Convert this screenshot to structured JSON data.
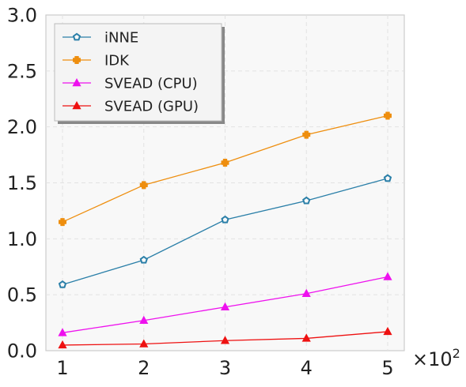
{
  "chart_data": {
    "type": "line",
    "x": [
      1,
      2,
      3,
      4,
      5
    ],
    "x_multiplier_label": "×10",
    "x_multiplier_exp": "2",
    "xticks": [
      "1",
      "2",
      "3",
      "4",
      "5"
    ],
    "yticks": [
      "0.0",
      "0.5",
      "1.0",
      "1.5",
      "2.0",
      "2.5",
      "3.0"
    ],
    "ylim": [
      0,
      3.0
    ],
    "grid": true,
    "legend_position": "top-left",
    "series": [
      {
        "name": "iNNE",
        "values": [
          0.59,
          0.81,
          1.17,
          1.34,
          1.54
        ],
        "color": "#2a7fa8",
        "marker": "pentagon"
      },
      {
        "name": "IDK",
        "values": [
          1.15,
          1.48,
          1.68,
          1.93,
          2.1
        ],
        "color": "#ee8e0e",
        "marker": "plus-filled"
      },
      {
        "name": "SVEAD (CPU)",
        "values": [
          0.16,
          0.27,
          0.39,
          0.51,
          0.66
        ],
        "color": "#ee11ee",
        "marker": "triangle"
      },
      {
        "name": "SVEAD (GPU)",
        "values": [
          0.05,
          0.06,
          0.09,
          0.11,
          0.17
        ],
        "color": "#ee1111",
        "marker": "triangle"
      }
    ]
  }
}
